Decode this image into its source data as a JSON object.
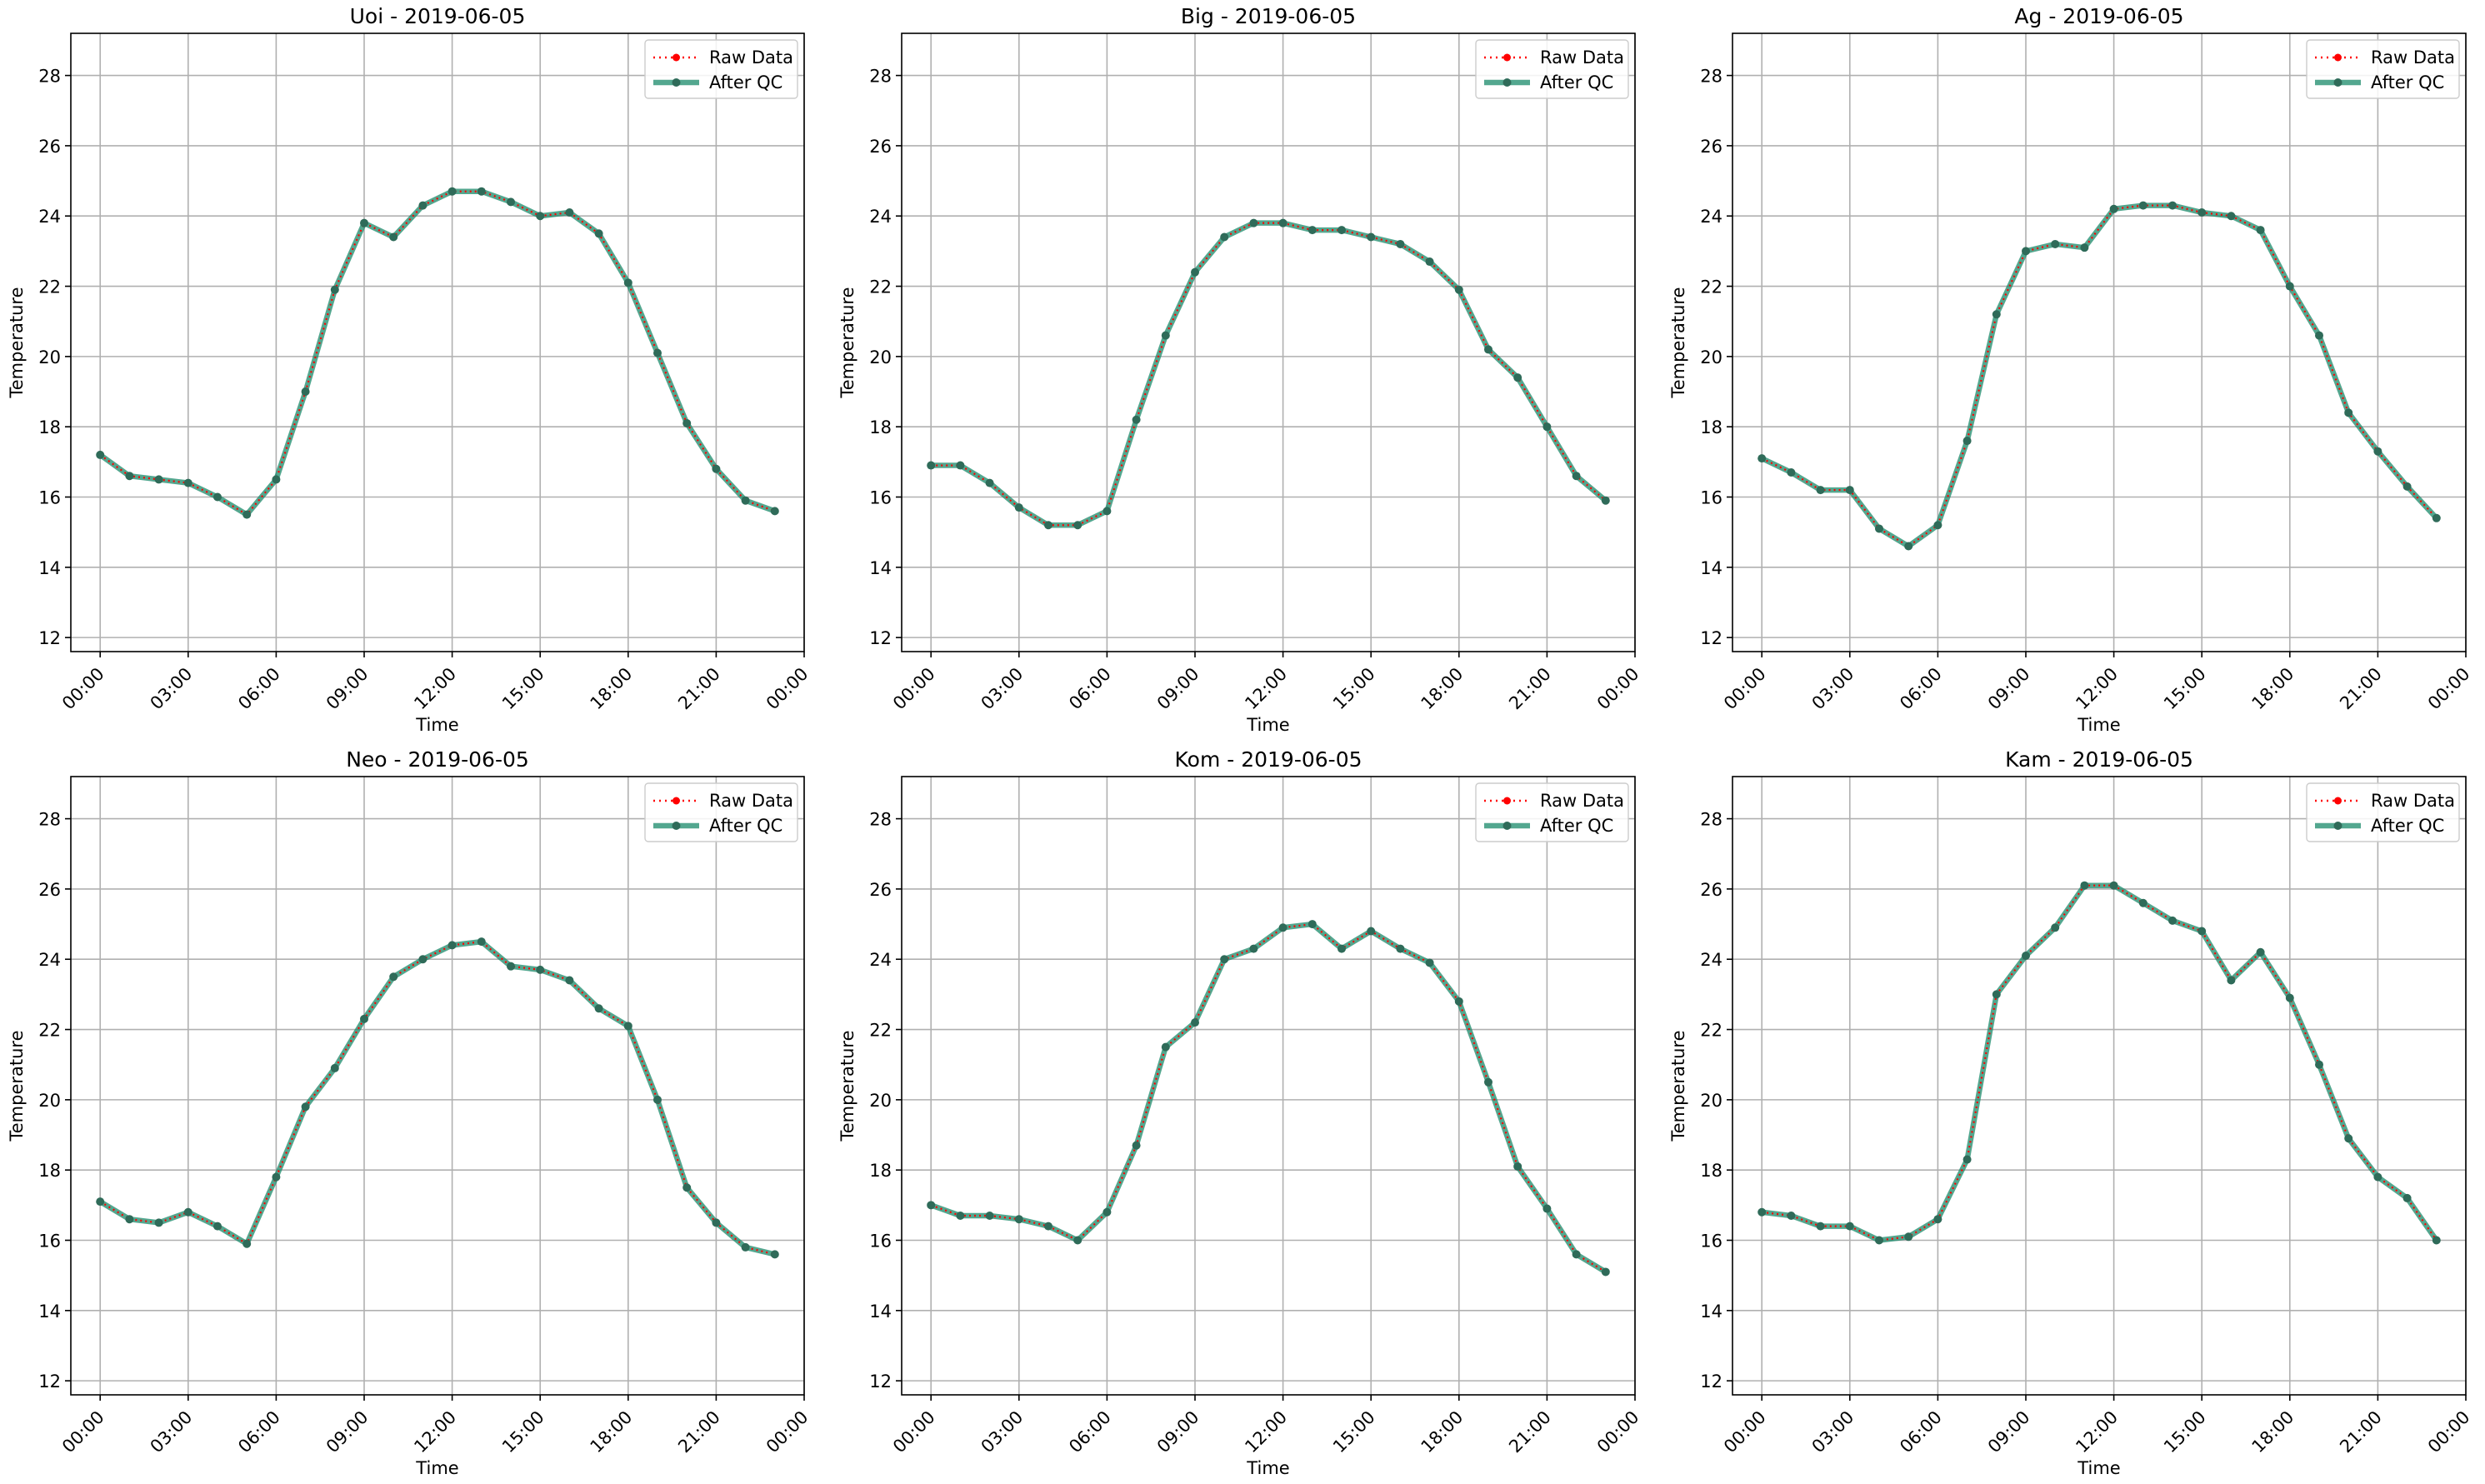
{
  "figure": {
    "background": "#ffffff",
    "grid_color": "#b0b0b0",
    "raw_color": "#ff0000",
    "qc_color": "#1a8a6a",
    "qc_point_color": "#2f6b59"
  },
  "chart_data": [
    {
      "type": "line",
      "title": "Uoi - 2019-06-05",
      "xlabel": "Time",
      "ylabel": "Temperature",
      "xlim": [
        -1,
        24
      ],
      "ylim": [
        11.6,
        29.2
      ],
      "yticks": [
        12,
        14,
        16,
        18,
        20,
        22,
        24,
        26,
        28
      ],
      "xtick_hours": [
        0,
        3,
        6,
        9,
        12,
        15,
        18,
        21,
        24
      ],
      "xtick_labels": [
        "00:00",
        "03:00",
        "06:00",
        "09:00",
        "12:00",
        "15:00",
        "18:00",
        "21:00",
        "00:00"
      ],
      "grid": true,
      "legend_position": "top-right",
      "x_hours": [
        0,
        1,
        2,
        3,
        4,
        5,
        6,
        7,
        8,
        9,
        10,
        11,
        12,
        13,
        14,
        15,
        16,
        17,
        18,
        19,
        20,
        21,
        22,
        23
      ],
      "series": [
        {
          "name": "Raw Data",
          "values": [
            17.2,
            16.6,
            16.5,
            16.4,
            16.0,
            15.5,
            16.5,
            19.0,
            21.9,
            23.8,
            23.4,
            24.3,
            24.7,
            24.7,
            24.4,
            24.0,
            24.1,
            23.5,
            22.1,
            20.1,
            18.1,
            16.8,
            15.9,
            15.6
          ]
        },
        {
          "name": "After QC",
          "values": [
            17.2,
            16.6,
            16.5,
            16.4,
            16.0,
            15.5,
            16.5,
            19.0,
            21.9,
            23.8,
            23.4,
            24.3,
            24.7,
            24.7,
            24.4,
            24.0,
            24.1,
            23.5,
            22.1,
            20.1,
            18.1,
            16.8,
            15.9,
            15.6
          ]
        }
      ]
    },
    {
      "type": "line",
      "title": "Big - 2019-06-05",
      "xlabel": "Time",
      "ylabel": "Temperature",
      "xlim": [
        -1,
        24
      ],
      "ylim": [
        11.6,
        29.2
      ],
      "yticks": [
        12,
        14,
        16,
        18,
        20,
        22,
        24,
        26,
        28
      ],
      "xtick_hours": [
        0,
        3,
        6,
        9,
        12,
        15,
        18,
        21,
        24
      ],
      "xtick_labels": [
        "00:00",
        "03:00",
        "06:00",
        "09:00",
        "12:00",
        "15:00",
        "18:00",
        "21:00",
        "00:00"
      ],
      "grid": true,
      "legend_position": "top-right",
      "x_hours": [
        0,
        1,
        2,
        3,
        4,
        5,
        6,
        7,
        8,
        9,
        10,
        11,
        12,
        13,
        14,
        15,
        16,
        17,
        18,
        19,
        20,
        21,
        22,
        23
      ],
      "series": [
        {
          "name": "Raw Data",
          "values": [
            16.9,
            16.9,
            16.4,
            15.7,
            15.2,
            15.2,
            15.6,
            18.2,
            20.6,
            22.4,
            23.4,
            23.8,
            23.8,
            23.6,
            23.6,
            23.4,
            23.2,
            22.7,
            21.9,
            20.2,
            19.4,
            18.0,
            16.6,
            15.9
          ]
        },
        {
          "name": "After QC",
          "values": [
            16.9,
            16.9,
            16.4,
            15.7,
            15.2,
            15.2,
            15.6,
            18.2,
            20.6,
            22.4,
            23.4,
            23.8,
            23.8,
            23.6,
            23.6,
            23.4,
            23.2,
            22.7,
            21.9,
            20.2,
            19.4,
            18.0,
            16.6,
            15.9
          ]
        }
      ]
    },
    {
      "type": "line",
      "title": "Ag - 2019-06-05",
      "xlabel": "Time",
      "ylabel": "Temperature",
      "xlim": [
        -1,
        24
      ],
      "ylim": [
        11.6,
        29.2
      ],
      "yticks": [
        12,
        14,
        16,
        18,
        20,
        22,
        24,
        26,
        28
      ],
      "xtick_hours": [
        0,
        3,
        6,
        9,
        12,
        15,
        18,
        21,
        24
      ],
      "xtick_labels": [
        "00:00",
        "03:00",
        "06:00",
        "09:00",
        "12:00",
        "15:00",
        "18:00",
        "21:00",
        "00:00"
      ],
      "grid": true,
      "legend_position": "top-right",
      "x_hours": [
        0,
        1,
        2,
        3,
        4,
        5,
        6,
        7,
        8,
        9,
        10,
        11,
        12,
        13,
        14,
        15,
        16,
        17,
        18,
        19,
        20,
        21,
        22,
        23
      ],
      "series": [
        {
          "name": "Raw Data",
          "values": [
            17.1,
            16.7,
            16.2,
            16.2,
            15.1,
            14.6,
            15.2,
            17.6,
            21.2,
            23.0,
            23.2,
            23.1,
            24.2,
            24.3,
            24.3,
            24.1,
            24.0,
            23.6,
            22.0,
            20.6,
            18.4,
            17.3,
            16.3,
            15.4
          ]
        },
        {
          "name": "After QC",
          "values": [
            17.1,
            16.7,
            16.2,
            16.2,
            15.1,
            14.6,
            15.2,
            17.6,
            21.2,
            23.0,
            23.2,
            23.1,
            24.2,
            24.3,
            24.3,
            24.1,
            24.0,
            23.6,
            22.0,
            20.6,
            18.4,
            17.3,
            16.3,
            15.4
          ]
        }
      ]
    },
    {
      "type": "line",
      "title": "Neo - 2019-06-05",
      "xlabel": "Time",
      "ylabel": "Temperature",
      "xlim": [
        -1,
        24
      ],
      "ylim": [
        11.6,
        29.2
      ],
      "yticks": [
        12,
        14,
        16,
        18,
        20,
        22,
        24,
        26,
        28
      ],
      "xtick_hours": [
        0,
        3,
        6,
        9,
        12,
        15,
        18,
        21,
        24
      ],
      "xtick_labels": [
        "00:00",
        "03:00",
        "06:00",
        "09:00",
        "12:00",
        "15:00",
        "18:00",
        "21:00",
        "00:00"
      ],
      "grid": true,
      "legend_position": "top-right",
      "x_hours": [
        0,
        1,
        2,
        3,
        4,
        5,
        6,
        7,
        8,
        9,
        10,
        11,
        12,
        13,
        14,
        15,
        16,
        17,
        18,
        19,
        20,
        21,
        22,
        23
      ],
      "series": [
        {
          "name": "Raw Data",
          "values": [
            17.1,
            16.6,
            16.5,
            16.8,
            16.4,
            15.9,
            17.8,
            19.8,
            20.9,
            22.3,
            23.5,
            24.0,
            24.4,
            24.5,
            23.8,
            23.7,
            23.4,
            22.6,
            22.1,
            20.0,
            17.5,
            16.5,
            15.8,
            15.6
          ]
        },
        {
          "name": "After QC",
          "values": [
            17.1,
            16.6,
            16.5,
            16.8,
            16.4,
            15.9,
            17.8,
            19.8,
            20.9,
            22.3,
            23.5,
            24.0,
            24.4,
            24.5,
            23.8,
            23.7,
            23.4,
            22.6,
            22.1,
            20.0,
            17.5,
            16.5,
            15.8,
            15.6
          ]
        }
      ]
    },
    {
      "type": "line",
      "title": "Kom - 2019-06-05",
      "xlabel": "Time",
      "ylabel": "Temperature",
      "xlim": [
        -1,
        24
      ],
      "ylim": [
        11.6,
        29.2
      ],
      "yticks": [
        12,
        14,
        16,
        18,
        20,
        22,
        24,
        26,
        28
      ],
      "xtick_hours": [
        0,
        3,
        6,
        9,
        12,
        15,
        18,
        21,
        24
      ],
      "xtick_labels": [
        "00:00",
        "03:00",
        "06:00",
        "09:00",
        "12:00",
        "15:00",
        "18:00",
        "21:00",
        "00:00"
      ],
      "grid": true,
      "legend_position": "top-right",
      "x_hours": [
        0,
        1,
        2,
        3,
        4,
        5,
        6,
        7,
        8,
        9,
        10,
        11,
        12,
        13,
        14,
        15,
        16,
        17,
        18,
        19,
        20,
        21,
        22,
        23
      ],
      "series": [
        {
          "name": "Raw Data",
          "values": [
            17.0,
            16.7,
            16.7,
            16.6,
            16.4,
            16.0,
            16.8,
            18.7,
            21.5,
            22.2,
            24.0,
            24.3,
            24.9,
            25.0,
            24.3,
            24.8,
            24.3,
            23.9,
            22.8,
            20.5,
            18.1,
            16.9,
            15.6,
            15.1
          ]
        },
        {
          "name": "After QC",
          "values": [
            17.0,
            16.7,
            16.7,
            16.6,
            16.4,
            16.0,
            16.8,
            18.7,
            21.5,
            22.2,
            24.0,
            24.3,
            24.9,
            25.0,
            24.3,
            24.8,
            24.3,
            23.9,
            22.8,
            20.5,
            18.1,
            16.9,
            15.6,
            15.1
          ]
        }
      ]
    },
    {
      "type": "line",
      "title": "Kam - 2019-06-05",
      "xlabel": "Time",
      "ylabel": "Temperature",
      "xlim": [
        -1,
        24
      ],
      "ylim": [
        11.6,
        29.2
      ],
      "yticks": [
        12,
        14,
        16,
        18,
        20,
        22,
        24,
        26,
        28
      ],
      "xtick_hours": [
        0,
        3,
        6,
        9,
        12,
        15,
        18,
        21,
        24
      ],
      "xtick_labels": [
        "00:00",
        "03:00",
        "06:00",
        "09:00",
        "12:00",
        "15:00",
        "18:00",
        "21:00",
        "00:00"
      ],
      "grid": true,
      "legend_position": "top-right",
      "x_hours": [
        0,
        1,
        2,
        3,
        4,
        5,
        6,
        7,
        8,
        9,
        10,
        11,
        12,
        13,
        14,
        15,
        16,
        17,
        18,
        19,
        20,
        21,
        22,
        23
      ],
      "series": [
        {
          "name": "Raw Data",
          "values": [
            16.8,
            16.7,
            16.4,
            16.4,
            16.0,
            16.1,
            16.6,
            18.3,
            23.0,
            24.1,
            24.9,
            26.1,
            26.1,
            25.6,
            25.1,
            24.8,
            23.4,
            24.2,
            22.9,
            21.0,
            18.9,
            17.8,
            17.2,
            16.0
          ]
        },
        {
          "name": "After QC",
          "values": [
            16.8,
            16.7,
            16.4,
            16.4,
            16.0,
            16.1,
            16.6,
            18.3,
            23.0,
            24.1,
            24.9,
            26.1,
            26.1,
            25.6,
            25.1,
            24.8,
            23.4,
            24.2,
            22.9,
            21.0,
            18.9,
            17.8,
            17.2,
            16.0
          ]
        }
      ]
    }
  ]
}
